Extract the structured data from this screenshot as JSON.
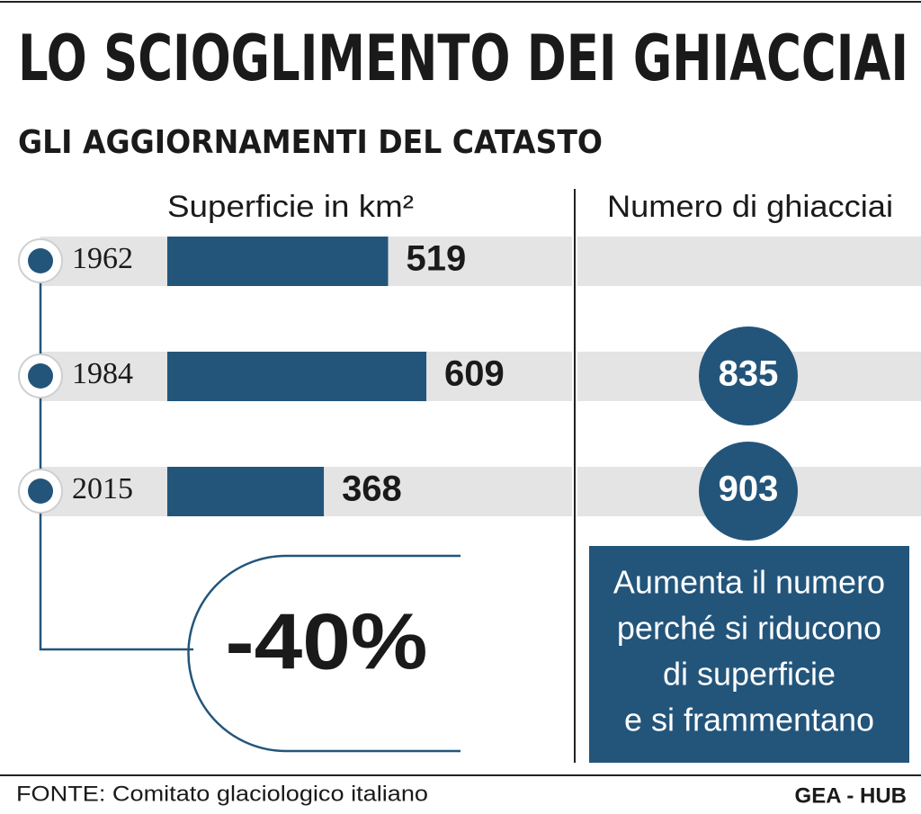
{
  "chart_data": {
    "type": "bar",
    "title": "LO SCIOGLIMENTO DEI GHIACCIAI",
    "subtitle": "GLI AGGIORNAMENTI DEL CATASTO",
    "value_label": "Superficie in km²",
    "count_label": "Numero di ghiacciai",
    "categories": [
      "1962",
      "1984",
      "2015"
    ],
    "values": [
      519,
      609,
      368
    ],
    "counts": [
      null,
      835,
      903
    ],
    "color": "#23557b",
    "annotation": "-40%",
    "note": [
      "Aumenta il numero",
      "perché si riducono",
      "di superficie",
      "e si frammentano"
    ],
    "source": "FONTE: Comitato glaciologico italiano",
    "credit": "GEA - HUB"
  }
}
